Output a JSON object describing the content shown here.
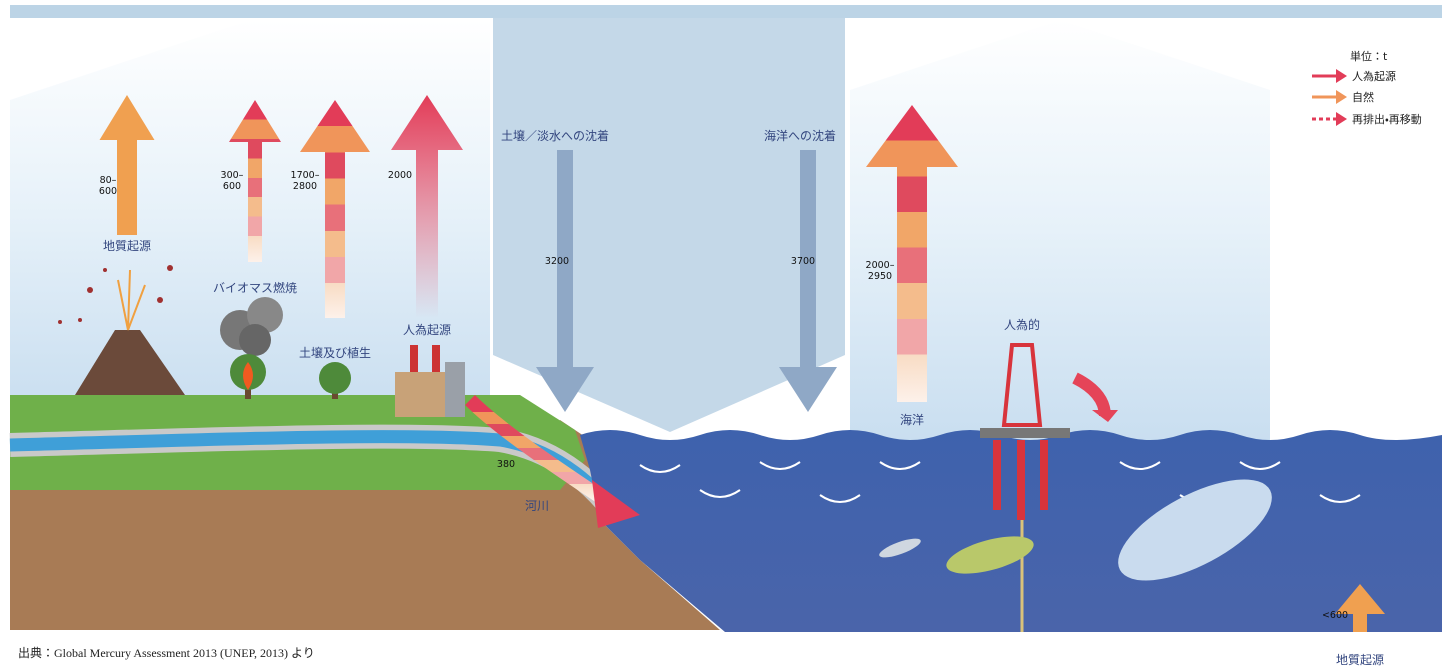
{
  "legend": {
    "unit": "単位：t",
    "items": [
      "人為起源",
      "自然",
      "再排出・再移動"
    ]
  },
  "sources": [
    {
      "label": "地質起源",
      "amount": [
        "80–",
        "600"
      ]
    },
    {
      "label": "バイオマス燃焼",
      "amount": [
        "300–",
        "600"
      ]
    },
    {
      "label": "土壌及び植生",
      "amount": [
        "1700–",
        "2800"
      ]
    },
    {
      "label": "人為起源",
      "amount": [
        "2000"
      ]
    }
  ],
  "deposition": [
    {
      "label": "土壌／淡水への沈着",
      "amount": "3200"
    },
    {
      "label": "海洋への沈着",
      "amount": "3700"
    }
  ],
  "ocean": {
    "label": "海洋",
    "amount": [
      "2000–",
      "2950"
    ]
  },
  "ocean_anthropogenic": "人為的",
  "river": {
    "label": "河川",
    "amount": "380"
  },
  "seafloor": {
    "label": "地質起源",
    "amount": "<600"
  },
  "source": "出典：Global Mercury Assessment 2013 (UNEP, 2013) より"
}
